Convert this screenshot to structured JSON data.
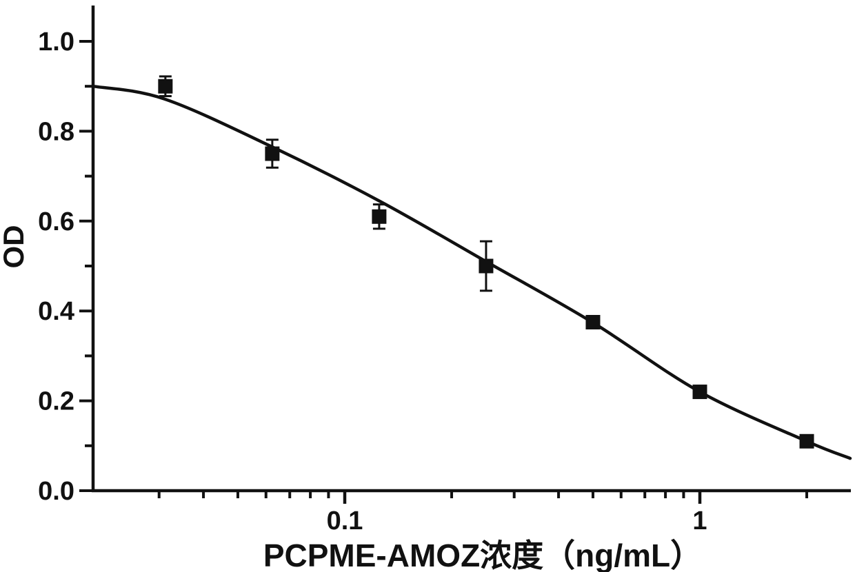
{
  "chart_data": {
    "type": "scatter",
    "title": "",
    "xlabel": "PCPME-AMOZ浓度（ng/mL）",
    "ylabel": "OD",
    "x_scale": "log",
    "xlim": [
      0.02,
      2.65
    ],
    "ylim": [
      0.0,
      1.08
    ],
    "grid": false,
    "legend_position": "none",
    "frame": "L-shaped (left and bottom axes only)",
    "colors": {
      "foreground": "#111111",
      "background": "#ffffff"
    },
    "x_ticks": {
      "major": [
        {
          "value": 0.1,
          "label": "0.1"
        },
        {
          "value": 1,
          "label": "1"
        }
      ],
      "minor": [
        0.03,
        0.04,
        0.05,
        0.06,
        0.07,
        0.08,
        0.09,
        0.2,
        0.3,
        0.4,
        0.5,
        0.6,
        0.7,
        0.8,
        0.9,
        2
      ]
    },
    "y_ticks": {
      "major": [
        {
          "value": 0.0,
          "label": "0.0"
        },
        {
          "value": 0.2,
          "label": "0.2"
        },
        {
          "value": 0.4,
          "label": "0.4"
        },
        {
          "value": 0.6,
          "label": "0.6"
        },
        {
          "value": 0.8,
          "label": "0.8"
        },
        {
          "value": 1.0,
          "label": "1.0"
        }
      ],
      "minor": [
        0.1,
        0.3,
        0.5,
        0.7,
        0.9
      ]
    },
    "series": [
      {
        "name": "standard-points",
        "marker": "filled-square",
        "color": "#111111",
        "points": [
          {
            "x": 0.03125,
            "y": 0.9,
            "yerr": 0.022
          },
          {
            "x": 0.0625,
            "y": 0.75,
            "yerr": 0.031
          },
          {
            "x": 0.125,
            "y": 0.61,
            "yerr": 0.027
          },
          {
            "x": 0.25,
            "y": 0.5,
            "yerr": 0.055
          },
          {
            "x": 0.5,
            "y": 0.375,
            "yerr": 0
          },
          {
            "x": 1,
            "y": 0.22,
            "yerr": 0
          },
          {
            "x": 2,
            "y": 0.11,
            "yerr": 0
          }
        ]
      }
    ],
    "fit_curve": {
      "name": "sigmoidal-fit-line",
      "color": "#111111",
      "points": [
        {
          "x": 0.0196,
          "y": 0.9
        },
        {
          "x": 0.031,
          "y": 0.872
        },
        {
          "x": 0.0625,
          "y": 0.765
        },
        {
          "x": 0.125,
          "y": 0.645
        },
        {
          "x": 0.25,
          "y": 0.51
        },
        {
          "x": 0.5,
          "y": 0.374
        },
        {
          "x": 1.0,
          "y": 0.22
        },
        {
          "x": 2.0,
          "y": 0.11
        },
        {
          "x": 2.65,
          "y": 0.072
        }
      ]
    }
  }
}
